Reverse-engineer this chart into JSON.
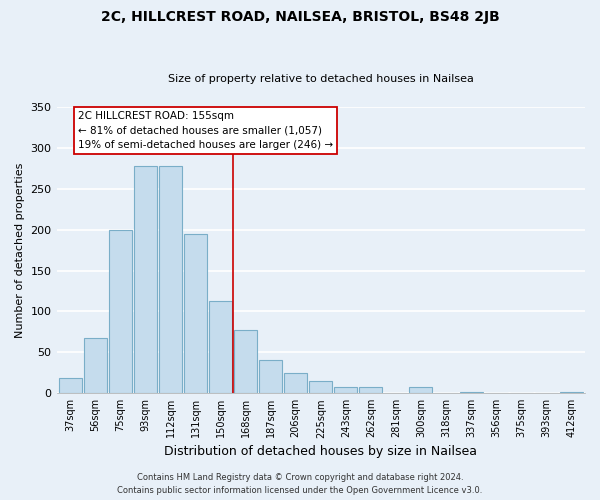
{
  "title": "2C, HILLCREST ROAD, NAILSEA, BRISTOL, BS48 2JB",
  "subtitle": "Size of property relative to detached houses in Nailsea",
  "xlabel": "Distribution of detached houses by size in Nailsea",
  "ylabel": "Number of detached properties",
  "bar_labels": [
    "37sqm",
    "56sqm",
    "75sqm",
    "93sqm",
    "112sqm",
    "131sqm",
    "150sqm",
    "168sqm",
    "187sqm",
    "206sqm",
    "225sqm",
    "243sqm",
    "262sqm",
    "281sqm",
    "300sqm",
    "318sqm",
    "337sqm",
    "356sqm",
    "375sqm",
    "393sqm",
    "412sqm"
  ],
  "bar_values": [
    18,
    68,
    200,
    278,
    278,
    195,
    113,
    77,
    40,
    25,
    15,
    8,
    8,
    0,
    7,
    0,
    2,
    0,
    0,
    0,
    2
  ],
  "bar_color": "#c5dced",
  "bar_edge_color": "#7aaec8",
  "vline_x": 6.5,
  "vline_color": "#cc0000",
  "annotation_title": "2C HILLCREST ROAD: 155sqm",
  "annotation_line1": "← 81% of detached houses are smaller (1,057)",
  "annotation_line2": "19% of semi-detached houses are larger (246) →",
  "annotation_box_facecolor": "#ffffff",
  "annotation_box_edgecolor": "#cc0000",
  "ylim": [
    0,
    350
  ],
  "yticks": [
    0,
    50,
    100,
    150,
    200,
    250,
    300,
    350
  ],
  "footer_line1": "Contains HM Land Registry data © Crown copyright and database right 2024.",
  "footer_line2": "Contains public sector information licensed under the Open Government Licence v3.0.",
  "background_color": "#e8f0f8",
  "grid_color": "#ffffff",
  "title_fontsize": 10,
  "subtitle_fontsize": 8,
  "xlabel_fontsize": 9,
  "ylabel_fontsize": 8,
  "tick_fontsize": 7,
  "footer_fontsize": 6,
  "annot_fontsize": 7.5
}
